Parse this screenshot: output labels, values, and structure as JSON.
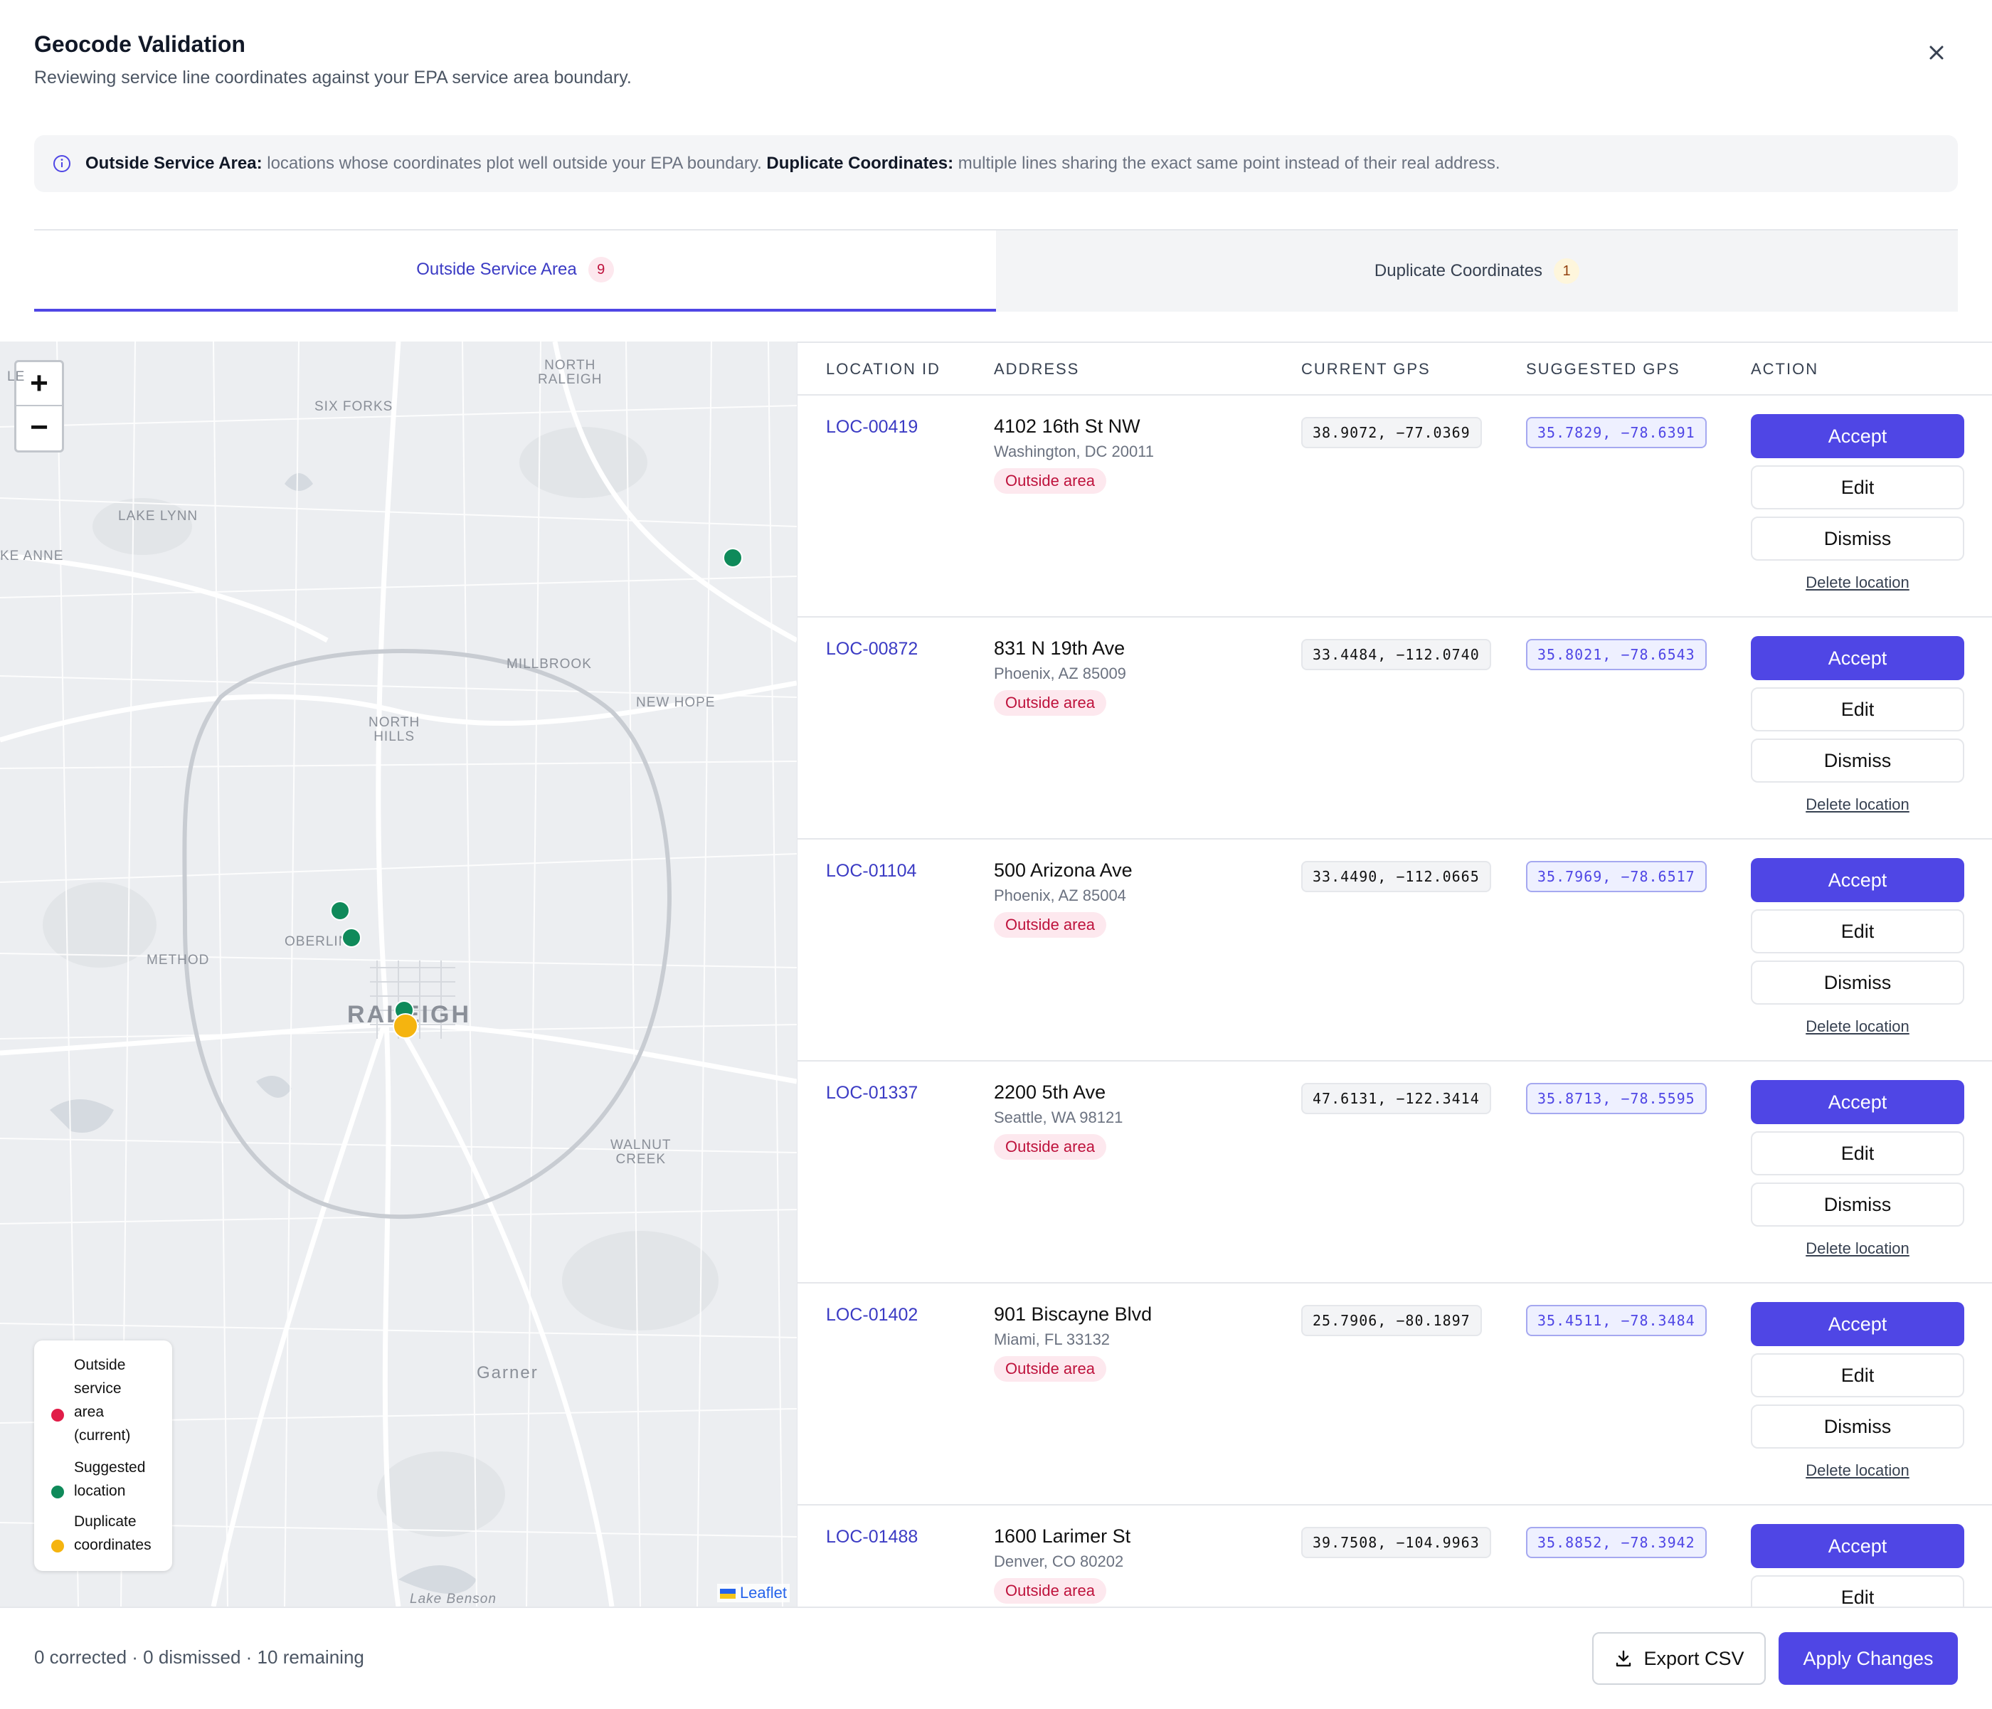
{
  "modal": {
    "title": "Geocode Validation",
    "subtitle": "Reviewing service line coordinates against your EPA service area boundary."
  },
  "info": {
    "outside_label": "Outside Service Area:",
    "outside_text": " locations whose coordinates plot well outside your EPA boundary. ",
    "duplicate_label": "Duplicate Coordinates:",
    "duplicate_text": " multiple lines sharing the exact same point instead of their real address."
  },
  "tabs": [
    {
      "label": "Outside Service Area",
      "count": "9",
      "active": true
    },
    {
      "label": "Duplicate Coordinates",
      "count": "1",
      "active": false
    }
  ],
  "map": {
    "zoom_in": "+",
    "zoom_out": "−",
    "labels": {
      "north_raleigh_1": "NORTH",
      "north_raleigh_2": "RALEIGH",
      "six_forks": "SIX FORKS",
      "lake_lynn": "LAKE LYNN",
      "lake_anne": "KE ANNE",
      "millbrook": "MILLBROOK",
      "new_hope": "NEW HOPE",
      "north_hills_1": "NORTH",
      "north_hills_2": "HILLS",
      "oberlin": "OBERLIN",
      "method": "METHOD",
      "raleigh": "RALEIGH",
      "walnut_creek_1": "WALNUT",
      "walnut_creek_2": "CREEK",
      "garner": "Garner",
      "lake_benson": "Lake Benson",
      "top_left": "LE"
    },
    "attribution": "Leaflet",
    "legend": {
      "outside": [
        "Outside",
        "service",
        "area",
        "(current)"
      ],
      "suggested": [
        "Suggested",
        "location"
      ],
      "duplicate": [
        "Duplicate",
        "coordinates"
      ]
    },
    "colors": {
      "outside": "#e11d48",
      "suggested": "#0f8a5a",
      "duplicate": "#f5b40f"
    }
  },
  "table": {
    "headers": [
      "LOCATION ID",
      "ADDRESS",
      "CURRENT GPS",
      "SUGGESTED GPS",
      "ACTION"
    ],
    "rows": [
      {
        "id": "LOC-00419",
        "street": "4102 16th St NW",
        "city": "Washington, DC 20011",
        "tag": "Outside area",
        "current": "38.9072, −77.0369",
        "suggested": "35.7829, −78.6391"
      },
      {
        "id": "LOC-00872",
        "street": "831 N 19th Ave",
        "city": "Phoenix, AZ 85009",
        "tag": "Outside area",
        "current": "33.4484, −112.0740",
        "suggested": "35.8021, −78.6543"
      },
      {
        "id": "LOC-01104",
        "street": "500 Arizona Ave",
        "city": "Phoenix, AZ 85004",
        "tag": "Outside area",
        "current": "33.4490, −112.0665",
        "suggested": "35.7969, −78.6517"
      },
      {
        "id": "LOC-01337",
        "street": "2200 5th Ave",
        "city": "Seattle, WA 98121",
        "tag": "Outside area",
        "current": "47.6131, −122.3414",
        "suggested": "35.8713, −78.5595"
      },
      {
        "id": "LOC-01402",
        "street": "901 Biscayne Blvd",
        "city": "Miami, FL 33132",
        "tag": "Outside area",
        "current": "25.7906, −80.1897",
        "suggested": "35.4511, −78.3484"
      },
      {
        "id": "LOC-01488",
        "street": "1600 Larimer St",
        "city": "Denver, CO 80202",
        "tag": "Outside area",
        "current": "39.7508, −104.9963",
        "suggested": "35.8852, −78.3942"
      }
    ],
    "actions": {
      "accept": "Accept",
      "edit": "Edit",
      "dismiss": "Dismiss",
      "delete": "Delete location"
    }
  },
  "footer": {
    "status": "0 corrected · 0 dismissed · 10 remaining",
    "export": "Export CSV",
    "apply": "Apply Changes"
  }
}
